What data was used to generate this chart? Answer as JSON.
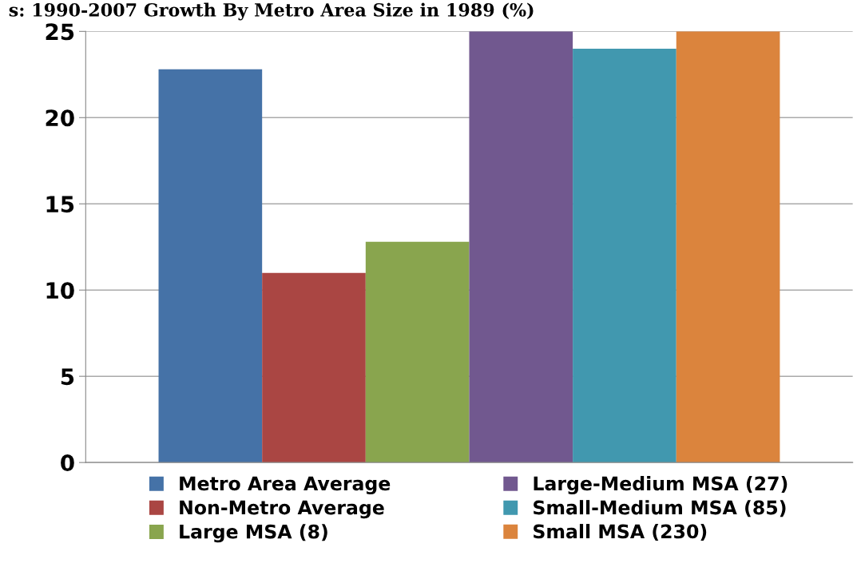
{
  "chart_data": {
    "type": "bar",
    "title": "s: 1990-2007 Growth By Metro Area Size in 1989 (%)",
    "categories": [
      null
    ],
    "series": [
      {
        "name": "Metro Area Average",
        "color": "#4572a7",
        "values": [
          22.8
        ]
      },
      {
        "name": "Non-Metro Average",
        "color": "#aa4643",
        "values": [
          11.0
        ]
      },
      {
        "name": "Large MSA (8)",
        "color": "#89a54e",
        "values": [
          12.8
        ]
      },
      {
        "name": "Large-Medium MSA (27)",
        "color": "#71588f",
        "values": [
          25
        ]
      },
      {
        "name": "Small-Medium MSA (85)",
        "color": "#4198af",
        "values": [
          24.0
        ]
      },
      {
        "name": "Small MSA (230)",
        "color": "#db843d",
        "values": [
          25
        ]
      }
    ],
    "ylim": [
      0,
      25
    ],
    "yticks": [
      0,
      5,
      10,
      15,
      20,
      25
    ],
    "grid": "y",
    "legend": "bottom"
  }
}
